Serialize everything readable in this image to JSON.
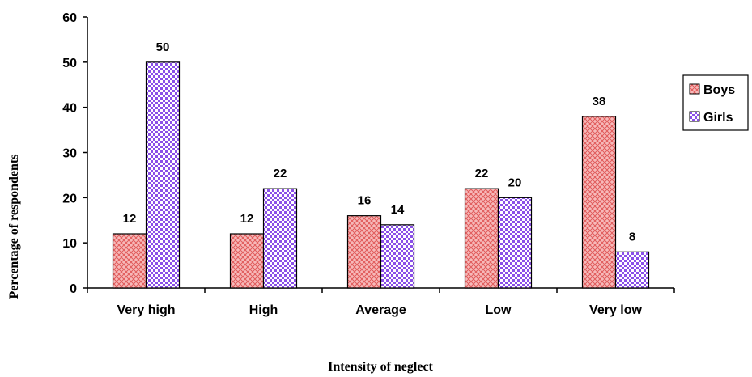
{
  "chart_data": {
    "type": "bar",
    "xlabel": "Intensity of neglect",
    "ylabel": "Percentage of respondents",
    "categories": [
      "Very high",
      "High",
      "Average",
      "Low",
      "Very low"
    ],
    "series": [
      {
        "name": "Boys",
        "values": [
          12,
          12,
          16,
          22,
          38
        ],
        "color": "#f4a3a3"
      },
      {
        "name": "Girls",
        "values": [
          50,
          22,
          14,
          20,
          8
        ],
        "color": "#9b6bf2"
      }
    ],
    "ylim": [
      0,
      60
    ],
    "yticks": [
      0,
      10,
      20,
      30,
      40,
      50,
      60
    ],
    "grid": false,
    "legend_position": "right"
  }
}
